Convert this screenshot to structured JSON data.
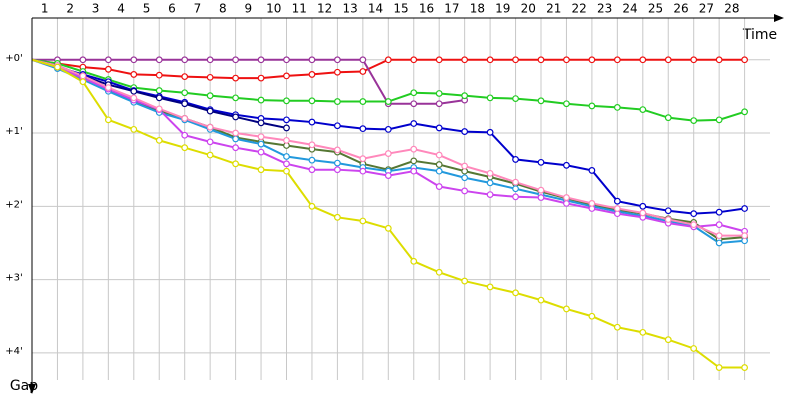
{
  "chart_data": {
    "type": "line",
    "x_label": "Time",
    "y_label": "Gap",
    "categories": [
      "1",
      "2",
      "3",
      "4",
      "5",
      "6",
      "7",
      "8",
      "9",
      "10",
      "11",
      "12",
      "13",
      "14",
      "15",
      "16",
      "17",
      "18",
      "19",
      "20",
      "21",
      "22",
      "23",
      "24",
      "25",
      "26",
      "27",
      "28"
    ],
    "ylim": [
      -0.57,
      4.37
    ],
    "yticks": [
      {
        "value": 0,
        "label": "+0'"
      },
      {
        "value": 1,
        "label": "+1'"
      },
      {
        "value": 2,
        "label": "+2'"
      },
      {
        "value": 3,
        "label": "+3'"
      },
      {
        "value": 4,
        "label": "+4'"
      }
    ],
    "grid": true,
    "series": [
      {
        "color": "#ee1111",
        "values": [
          0.05,
          0.1,
          0.13,
          0.2,
          0.21,
          0.23,
          0.24,
          0.25,
          0.25,
          0.22,
          0.2,
          0.17,
          0.16,
          0,
          0,
          0,
          0,
          0,
          0,
          0,
          0,
          0,
          0,
          0,
          0,
          0,
          0,
          0
        ]
      },
      {
        "color": "#993399",
        "values": [
          0,
          0,
          0,
          0,
          0,
          0,
          0,
          0,
          0,
          0,
          0,
          0,
          0,
          0.6,
          0.6,
          0.6,
          0.55,
          null,
          null,
          null,
          null,
          null,
          null,
          null,
          null,
          null,
          null,
          null
        ]
      },
      {
        "color": "#22cc22",
        "values": [
          0.05,
          0.16,
          0.27,
          0.38,
          0.42,
          0.45,
          0.49,
          0.52,
          0.55,
          0.56,
          0.56,
          0.57,
          0.57,
          0.57,
          0.45,
          0.46,
          0.49,
          0.52,
          0.53,
          0.56,
          0.6,
          0.63,
          0.65,
          0.68,
          0.79,
          0.83,
          0.82,
          0.71
        ]
      },
      {
        "color": "#0000cc",
        "values": [
          0.1,
          0.2,
          0.3,
          0.42,
          0.5,
          0.58,
          0.68,
          0.75,
          0.8,
          0.82,
          0.85,
          0.9,
          0.94,
          0.95,
          0.87,
          0.93,
          0.98,
          0.99,
          1.36,
          1.4,
          1.44,
          1.51,
          1.93,
          2.0,
          2.06,
          2.1,
          2.08,
          2.03
        ]
      },
      {
        "color": "#000080",
        "values": [
          0.08,
          0.22,
          0.34,
          0.43,
          0.52,
          0.6,
          0.7,
          0.78,
          0.86,
          0.93,
          null,
          null,
          null,
          null,
          null,
          null,
          null,
          null,
          null,
          null,
          null,
          null,
          null,
          null,
          null,
          null,
          null,
          null
        ]
      },
      {
        "color": "#557733",
        "values": [
          0.1,
          0.25,
          0.42,
          0.57,
          0.7,
          0.8,
          0.92,
          1.06,
          1.12,
          1.17,
          1.22,
          1.26,
          1.42,
          1.5,
          1.38,
          1.43,
          1.52,
          1.6,
          1.69,
          1.8,
          1.89,
          1.98,
          2.05,
          2.1,
          2.17,
          2.22,
          2.45,
          2.42
        ]
      },
      {
        "color": "#2299dd",
        "values": [
          0.12,
          0.27,
          0.43,
          0.58,
          0.72,
          0.82,
          0.95,
          1.08,
          1.15,
          1.32,
          1.37,
          1.41,
          1.47,
          1.52,
          1.47,
          1.52,
          1.61,
          1.68,
          1.76,
          1.84,
          1.92,
          2.0,
          2.07,
          2.13,
          2.2,
          2.27,
          2.5,
          2.47
        ]
      },
      {
        "color": "#cc44ee",
        "values": [
          0.1,
          0.25,
          0.4,
          0.55,
          0.68,
          1.03,
          1.12,
          1.2,
          1.26,
          1.42,
          1.5,
          1.5,
          1.52,
          1.58,
          1.52,
          1.73,
          1.79,
          1.84,
          1.87,
          1.88,
          1.96,
          2.03,
          2.1,
          2.15,
          2.23,
          2.28,
          2.25,
          2.34
        ]
      },
      {
        "color": "#ff88bb",
        "values": [
          0.08,
          0.22,
          0.38,
          0.52,
          0.67,
          0.8,
          0.92,
          1.0,
          1.05,
          1.1,
          1.16,
          1.23,
          1.35,
          1.28,
          1.22,
          1.3,
          1.45,
          1.55,
          1.67,
          1.78,
          1.88,
          1.96,
          2.03,
          2.09,
          2.18,
          2.25,
          2.4,
          2.4
        ]
      },
      {
        "color": "#dddd00",
        "values": [
          0.1,
          0.3,
          0.82,
          0.95,
          1.1,
          1.2,
          1.3,
          1.42,
          1.5,
          1.52,
          2.0,
          2.15,
          2.2,
          2.3,
          2.75,
          2.9,
          3.02,
          3.1,
          3.18,
          3.28,
          3.4,
          3.5,
          3.65,
          3.72,
          3.82,
          3.94,
          4.2,
          4.2
        ]
      }
    ]
  }
}
